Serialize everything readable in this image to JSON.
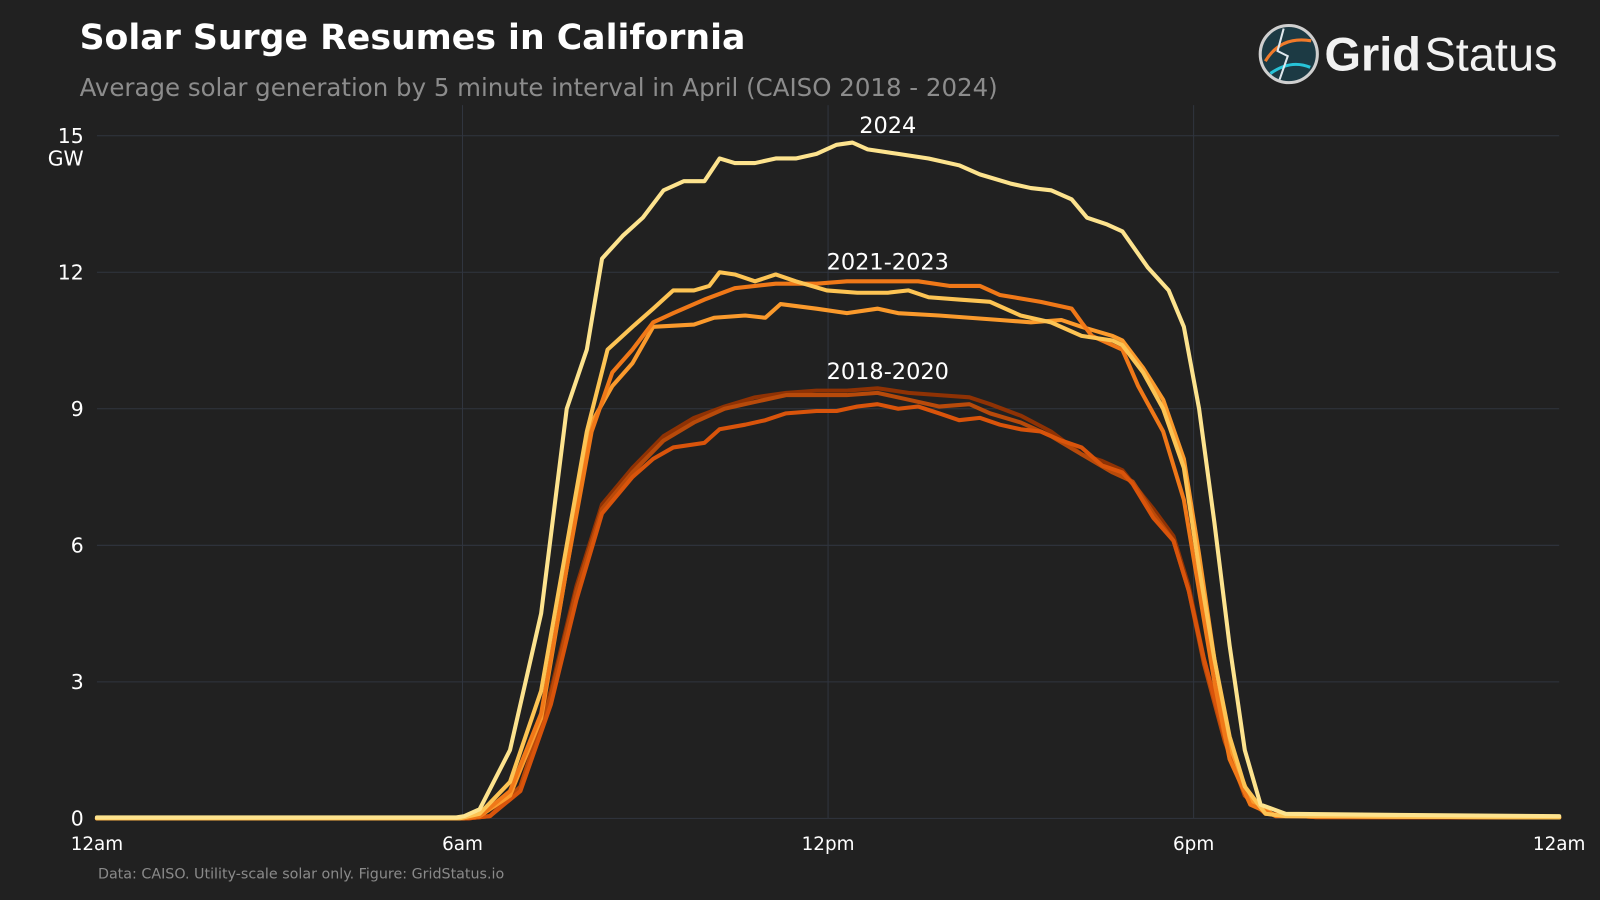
{
  "header": {
    "title": "Solar Surge Resumes in California",
    "subtitle": "Average solar generation by 5 minute interval in April (CAISO 2018 - 2024)"
  },
  "logo": {
    "bold": "Grid",
    "regular": "Status"
  },
  "footnote": "Data: CAISO. Utility-scale solar only. Figure: GridStatus.io",
  "chart_data": {
    "type": "line",
    "title": "Solar Surge Resumes in California",
    "ylabel": "GW",
    "xlabel": "",
    "xlim": [
      0,
      24
    ],
    "ylim": [
      0,
      15
    ],
    "grid": true,
    "x_ticks": [
      {
        "value": 0,
        "label": "12am"
      },
      {
        "value": 6,
        "label": "6am"
      },
      {
        "value": 12,
        "label": "12pm"
      },
      {
        "value": 18,
        "label": "6pm"
      },
      {
        "value": 24,
        "label": "12am"
      }
    ],
    "y_ticks": [
      {
        "value": 0,
        "label": "0"
      },
      {
        "value": 3,
        "label": "3"
      },
      {
        "value": 6,
        "label": "6"
      },
      {
        "value": 9,
        "label": "9"
      },
      {
        "value": 12,
        "label": "12"
      },
      {
        "value": 15,
        "label": "15"
      }
    ],
    "annotations": [
      {
        "text": "2024",
        "x": 12.98,
        "y": 15.1
      },
      {
        "text": "2021-2023",
        "x": 12.98,
        "y": 12.1
      },
      {
        "text": "2018-2020",
        "x": 12.98,
        "y": 9.7
      }
    ],
    "series": [
      {
        "color": "#8f3204",
        "points": [
          [
            0,
            0
          ],
          [
            6.1,
            0
          ],
          [
            6.45,
            0.05
          ],
          [
            6.95,
            0.7
          ],
          [
            7.45,
            2.8
          ],
          [
            7.87,
            5.1
          ],
          [
            8.29,
            6.9
          ],
          [
            8.79,
            7.7
          ],
          [
            9.3,
            8.4
          ],
          [
            9.8,
            8.8
          ],
          [
            10.3,
            9.05
          ],
          [
            10.8,
            9.25
          ],
          [
            11.31,
            9.35
          ],
          [
            11.81,
            9.4
          ],
          [
            12.31,
            9.4
          ],
          [
            12.81,
            9.45
          ],
          [
            13.32,
            9.35
          ],
          [
            13.82,
            9.3
          ],
          [
            14.32,
            9.25
          ],
          [
            14.66,
            9.1
          ],
          [
            15.16,
            8.85
          ],
          [
            15.66,
            8.5
          ],
          [
            16.16,
            8.0
          ],
          [
            16.5,
            7.85
          ],
          [
            16.83,
            7.65
          ],
          [
            17.34,
            6.8
          ],
          [
            17.67,
            6.2
          ],
          [
            17.92,
            5.1
          ],
          [
            18.17,
            3.5
          ],
          [
            18.51,
            1.8
          ],
          [
            18.84,
            0.5
          ],
          [
            19.18,
            0.1
          ],
          [
            20,
            0.03
          ],
          [
            24,
            0.02
          ]
        ]
      },
      {
        "color": "#b84a0a",
        "points": [
          [
            0,
            0
          ],
          [
            6.1,
            0
          ],
          [
            6.45,
            0.05
          ],
          [
            6.95,
            0.7
          ],
          [
            7.45,
            2.7
          ],
          [
            7.87,
            5.0
          ],
          [
            8.29,
            6.8
          ],
          [
            8.79,
            7.6
          ],
          [
            9.3,
            8.3
          ],
          [
            9.8,
            8.7
          ],
          [
            10.3,
            9.0
          ],
          [
            10.8,
            9.15
          ],
          [
            11.31,
            9.3
          ],
          [
            11.81,
            9.3
          ],
          [
            12.31,
            9.3
          ],
          [
            12.81,
            9.35
          ],
          [
            13.32,
            9.2
          ],
          [
            13.82,
            9.05
          ],
          [
            14.32,
            9.1
          ],
          [
            14.66,
            8.9
          ],
          [
            15.16,
            8.7
          ],
          [
            15.66,
            8.4
          ],
          [
            16.16,
            8.0
          ],
          [
            16.67,
            7.6
          ],
          [
            17.0,
            7.4
          ],
          [
            17.34,
            6.7
          ],
          [
            17.67,
            6.1
          ],
          [
            17.92,
            5.0
          ],
          [
            18.17,
            3.4
          ],
          [
            18.51,
            1.7
          ],
          [
            18.84,
            0.5
          ],
          [
            19.18,
            0.1
          ],
          [
            20,
            0.03
          ],
          [
            24,
            0.02
          ]
        ]
      },
      {
        "color": "#d9540b",
        "points": [
          [
            0,
            0
          ],
          [
            6.1,
            0
          ],
          [
            6.45,
            0.05
          ],
          [
            6.95,
            0.6
          ],
          [
            7.45,
            2.5
          ],
          [
            7.87,
            4.8
          ],
          [
            8.29,
            6.7
          ],
          [
            8.79,
            7.5
          ],
          [
            9.13,
            7.9
          ],
          [
            9.46,
            8.15
          ],
          [
            9.97,
            8.25
          ],
          [
            10.22,
            8.55
          ],
          [
            10.64,
            8.65
          ],
          [
            10.97,
            8.75
          ],
          [
            11.31,
            8.9
          ],
          [
            11.81,
            8.95
          ],
          [
            12.14,
            8.95
          ],
          [
            12.48,
            9.05
          ],
          [
            12.81,
            9.1
          ],
          [
            13.15,
            9.0
          ],
          [
            13.48,
            9.05
          ],
          [
            13.82,
            8.9
          ],
          [
            14.15,
            8.75
          ],
          [
            14.49,
            8.8
          ],
          [
            14.82,
            8.65
          ],
          [
            15.16,
            8.55
          ],
          [
            15.49,
            8.5
          ],
          [
            15.83,
            8.3
          ],
          [
            16.16,
            8.15
          ],
          [
            16.5,
            7.75
          ],
          [
            16.83,
            7.6
          ],
          [
            17.0,
            7.35
          ],
          [
            17.34,
            6.6
          ],
          [
            17.67,
            6.1
          ],
          [
            17.92,
            5.0
          ],
          [
            18.17,
            3.5
          ],
          [
            18.51,
            1.8
          ],
          [
            18.84,
            0.6
          ],
          [
            19.18,
            0.1
          ],
          [
            20,
            0.03
          ],
          [
            24,
            0.02
          ]
        ]
      },
      {
        "color": "#fb9a2c",
        "points": [
          [
            0,
            0
          ],
          [
            6.0,
            0
          ],
          [
            6.28,
            0.05
          ],
          [
            6.78,
            0.5
          ],
          [
            7.29,
            2.2
          ],
          [
            7.71,
            5.5
          ],
          [
            8.12,
            8.7
          ],
          [
            8.46,
            9.5
          ],
          [
            8.79,
            10.0
          ],
          [
            9.13,
            10.8
          ],
          [
            9.8,
            10.85
          ],
          [
            10.13,
            11.0
          ],
          [
            10.64,
            11.05
          ],
          [
            10.97,
            11.0
          ],
          [
            11.22,
            11.3
          ],
          [
            11.81,
            11.2
          ],
          [
            12.31,
            11.1
          ],
          [
            12.81,
            11.2
          ],
          [
            13.15,
            11.1
          ],
          [
            13.82,
            11.05
          ],
          [
            14.32,
            11.0
          ],
          [
            14.82,
            10.95
          ],
          [
            15.33,
            10.9
          ],
          [
            15.83,
            10.95
          ],
          [
            16.16,
            10.8
          ],
          [
            16.67,
            10.6
          ],
          [
            16.83,
            10.5
          ],
          [
            17.17,
            9.9
          ],
          [
            17.5,
            9.2
          ],
          [
            17.84,
            7.9
          ],
          [
            18.09,
            5.8
          ],
          [
            18.34,
            3.5
          ],
          [
            18.59,
            1.6
          ],
          [
            18.93,
            0.4
          ],
          [
            19.35,
            0.05
          ],
          [
            24,
            0.02
          ]
        ]
      },
      {
        "color": "#f07818",
        "points": [
          [
            0,
            0
          ],
          [
            6.0,
            0
          ],
          [
            6.28,
            0.05
          ],
          [
            6.78,
            0.6
          ],
          [
            7.29,
            2.3
          ],
          [
            7.71,
            5.5
          ],
          [
            8.12,
            8.5
          ],
          [
            8.46,
            9.8
          ],
          [
            8.79,
            10.3
          ],
          [
            9.13,
            10.9
          ],
          [
            9.46,
            11.1
          ],
          [
            9.97,
            11.4
          ],
          [
            10.47,
            11.65
          ],
          [
            11.14,
            11.75
          ],
          [
            11.81,
            11.75
          ],
          [
            12.31,
            11.8
          ],
          [
            12.98,
            11.8
          ],
          [
            13.48,
            11.8
          ],
          [
            13.99,
            11.7
          ],
          [
            14.49,
            11.7
          ],
          [
            14.82,
            11.5
          ],
          [
            15.49,
            11.35
          ],
          [
            16.0,
            11.2
          ],
          [
            16.16,
            10.9
          ],
          [
            16.33,
            10.6
          ],
          [
            16.83,
            10.3
          ],
          [
            17.09,
            9.5
          ],
          [
            17.5,
            8.5
          ],
          [
            17.84,
            7.0
          ],
          [
            18.09,
            5.0
          ],
          [
            18.34,
            3.0
          ],
          [
            18.59,
            1.3
          ],
          [
            18.93,
            0.3
          ],
          [
            19.35,
            0.05
          ],
          [
            24,
            0.02
          ]
        ]
      },
      {
        "color": "#fdc454",
        "points": [
          [
            0,
            0
          ],
          [
            5.95,
            0
          ],
          [
            6.28,
            0.1
          ],
          [
            6.78,
            0.8
          ],
          [
            7.29,
            2.8
          ],
          [
            7.71,
            6.0
          ],
          [
            8.04,
            8.5
          ],
          [
            8.38,
            10.3
          ],
          [
            8.79,
            10.8
          ],
          [
            9.13,
            11.2
          ],
          [
            9.46,
            11.6
          ],
          [
            9.8,
            11.6
          ],
          [
            10.05,
            11.7
          ],
          [
            10.22,
            12.0
          ],
          [
            10.47,
            11.95
          ],
          [
            10.8,
            11.8
          ],
          [
            11.14,
            11.95
          ],
          [
            11.47,
            11.8
          ],
          [
            11.98,
            11.6
          ],
          [
            12.48,
            11.55
          ],
          [
            12.98,
            11.55
          ],
          [
            13.32,
            11.6
          ],
          [
            13.65,
            11.45
          ],
          [
            14.15,
            11.4
          ],
          [
            14.66,
            11.35
          ],
          [
            15.16,
            11.05
          ],
          [
            15.66,
            10.9
          ],
          [
            16.16,
            10.6
          ],
          [
            16.67,
            10.5
          ],
          [
            16.83,
            10.4
          ],
          [
            17.17,
            9.8
          ],
          [
            17.5,
            9.0
          ],
          [
            17.84,
            7.7
          ],
          [
            18.09,
            5.5
          ],
          [
            18.34,
            3.5
          ],
          [
            18.59,
            1.8
          ],
          [
            18.84,
            0.7
          ],
          [
            19.18,
            0.1
          ],
          [
            19.51,
            0.05
          ],
          [
            24,
            0.02
          ]
        ]
      },
      {
        "color": "#fde38e",
        "points": [
          [
            0,
            0.02
          ],
          [
            5.9,
            0.02
          ],
          [
            6.03,
            0.05
          ],
          [
            6.28,
            0.2
          ],
          [
            6.78,
            1.5
          ],
          [
            7.29,
            4.5
          ],
          [
            7.71,
            9.0
          ],
          [
            8.04,
            10.3
          ],
          [
            8.29,
            12.3
          ],
          [
            8.63,
            12.8
          ],
          [
            8.96,
            13.2
          ],
          [
            9.3,
            13.8
          ],
          [
            9.63,
            14.0
          ],
          [
            9.97,
            14.0
          ],
          [
            10.22,
            14.5
          ],
          [
            10.47,
            14.4
          ],
          [
            10.8,
            14.4
          ],
          [
            11.14,
            14.5
          ],
          [
            11.47,
            14.5
          ],
          [
            11.81,
            14.6
          ],
          [
            12.14,
            14.8
          ],
          [
            12.4,
            14.85
          ],
          [
            12.65,
            14.7
          ],
          [
            13.15,
            14.6
          ],
          [
            13.65,
            14.5
          ],
          [
            14.15,
            14.35
          ],
          [
            14.49,
            14.15
          ],
          [
            14.99,
            13.95
          ],
          [
            15.33,
            13.85
          ],
          [
            15.66,
            13.8
          ],
          [
            16.0,
            13.6
          ],
          [
            16.25,
            13.2
          ],
          [
            16.58,
            13.05
          ],
          [
            16.83,
            12.9
          ],
          [
            17.25,
            12.1
          ],
          [
            17.59,
            11.6
          ],
          [
            17.84,
            10.8
          ],
          [
            18.09,
            9.0
          ],
          [
            18.34,
            6.5
          ],
          [
            18.59,
            3.8
          ],
          [
            18.84,
            1.5
          ],
          [
            19.1,
            0.3
          ],
          [
            19.51,
            0.1
          ],
          [
            21.86,
            0.07
          ],
          [
            24,
            0.05
          ]
        ]
      }
    ]
  }
}
